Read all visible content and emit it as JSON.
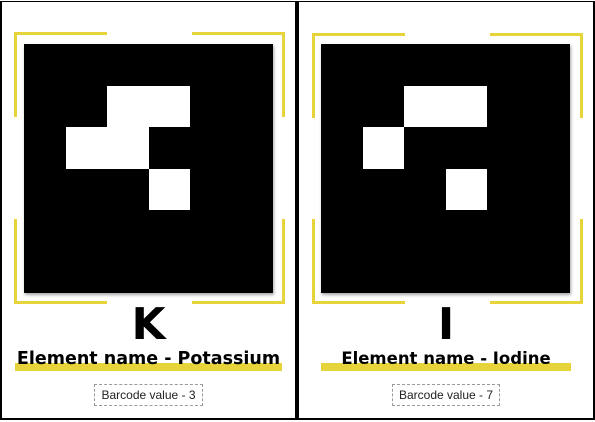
{
  "cards": [
    {
      "symbol": "K",
      "element_label": "Element name - Potassium",
      "barcode_label": "Barcode value - 3",
      "marker_cells": [
        [
          1,
          2
        ],
        [
          1,
          3
        ],
        [
          2,
          1
        ],
        [
          2,
          2
        ],
        [
          3,
          3
        ]
      ]
    },
    {
      "symbol": "I",
      "element_label": "Element name - Iodine",
      "barcode_label": "Barcode value - 7",
      "marker_cells": [
        [
          1,
          2
        ],
        [
          1,
          3
        ],
        [
          2,
          1
        ],
        [
          3,
          3
        ]
      ]
    }
  ],
  "colors": {
    "accent": "#e7d33a",
    "marker": "#000000",
    "cell": "#ffffff"
  }
}
